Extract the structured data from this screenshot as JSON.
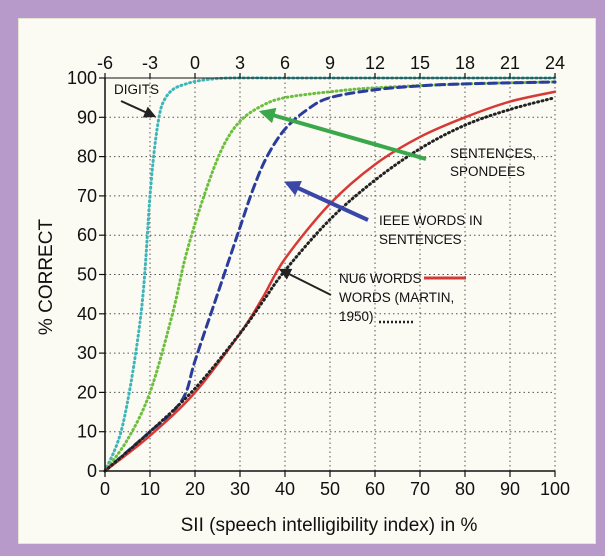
{
  "chart_data": {
    "type": "line",
    "xlabel": "SII (speech intelligibility index) in %",
    "ylabel": "% CORRECT",
    "xlim": [
      0,
      100
    ],
    "ylim": [
      0,
      100
    ],
    "x_ticks": [
      "0",
      "10",
      "20",
      "30",
      "40",
      "50",
      "60",
      "70",
      "80",
      "90",
      "100"
    ],
    "y_ticks": [
      "0",
      "10",
      "20",
      "30",
      "40",
      "50",
      "60",
      "70",
      "80",
      "90",
      "100"
    ],
    "top_axis_ticks": [
      "-6",
      "-3",
      "0",
      "3",
      "6",
      "9",
      "12",
      "15",
      "18",
      "21",
      "24"
    ],
    "grid": true,
    "series": [
      {
        "name": "DIGITS",
        "color": "#3fb5b8",
        "style": "dotted",
        "x": [
          0,
          4,
          8,
          10,
          11,
          12,
          13,
          15,
          18,
          22,
          28,
          40,
          60,
          100
        ],
        "y": [
          0,
          12,
          40,
          70,
          82,
          90,
          94,
          97,
          98.5,
          99.5,
          100,
          100,
          100,
          100
        ]
      },
      {
        "name": "SENTENCES, SPONDEES",
        "color": "#6cbf3c",
        "style": "dotted",
        "x": [
          0,
          5,
          10,
          15,
          18,
          22,
          26,
          30,
          35,
          40,
          50,
          60,
          80,
          100
        ],
        "y": [
          0,
          8,
          20,
          40,
          55,
          70,
          82,
          89,
          93,
          95,
          96.5,
          97.5,
          98.5,
          99
        ]
      },
      {
        "name": "IEEE WORDS IN SENTENCES",
        "color": "#2a3c9c",
        "style": "dashed",
        "x": [
          0,
          10,
          15,
          18,
          20,
          25,
          30,
          33,
          36,
          40,
          45,
          50,
          60,
          70,
          80,
          100
        ],
        "y": [
          0,
          10,
          15,
          20,
          28,
          45,
          62,
          72,
          80,
          87,
          92,
          95,
          97,
          98,
          98.5,
          99
        ]
      },
      {
        "name": "NU6 WORDS",
        "color": "#d63a34",
        "style": "solid",
        "x": [
          0,
          10,
          20,
          30,
          35,
          40,
          50,
          60,
          70,
          80,
          90,
          100
        ],
        "y": [
          0,
          9,
          20,
          35,
          44,
          54,
          68,
          78,
          85,
          90,
          94,
          96.5
        ]
      },
      {
        "name": "WORDS (MARTIN, 1950)",
        "color": "#222222",
        "style": "dotted",
        "x": [
          0,
          10,
          20,
          30,
          35,
          40,
          50,
          60,
          70,
          80,
          90,
          100
        ],
        "y": [
          0,
          10,
          21,
          35,
          43,
          51,
          64,
          74,
          82,
          88,
          92,
          95
        ]
      }
    ],
    "annotations": {
      "digits": "DIGITS",
      "sentences_1": "SENTENCES,",
      "sentences_2": "SPONDEES",
      "ieee_1": "IEEE WORDS IN",
      "ieee_2": "SENTENCES",
      "nu6": "NU6 WORDS",
      "martin_1": "WORDS (MARTIN,",
      "martin_2": "1950)"
    },
    "arrow_colors": {
      "digits": "#222222",
      "sentences": "#3aa84a",
      "ieee": "#3a47a8",
      "nu6": "#222222"
    }
  }
}
